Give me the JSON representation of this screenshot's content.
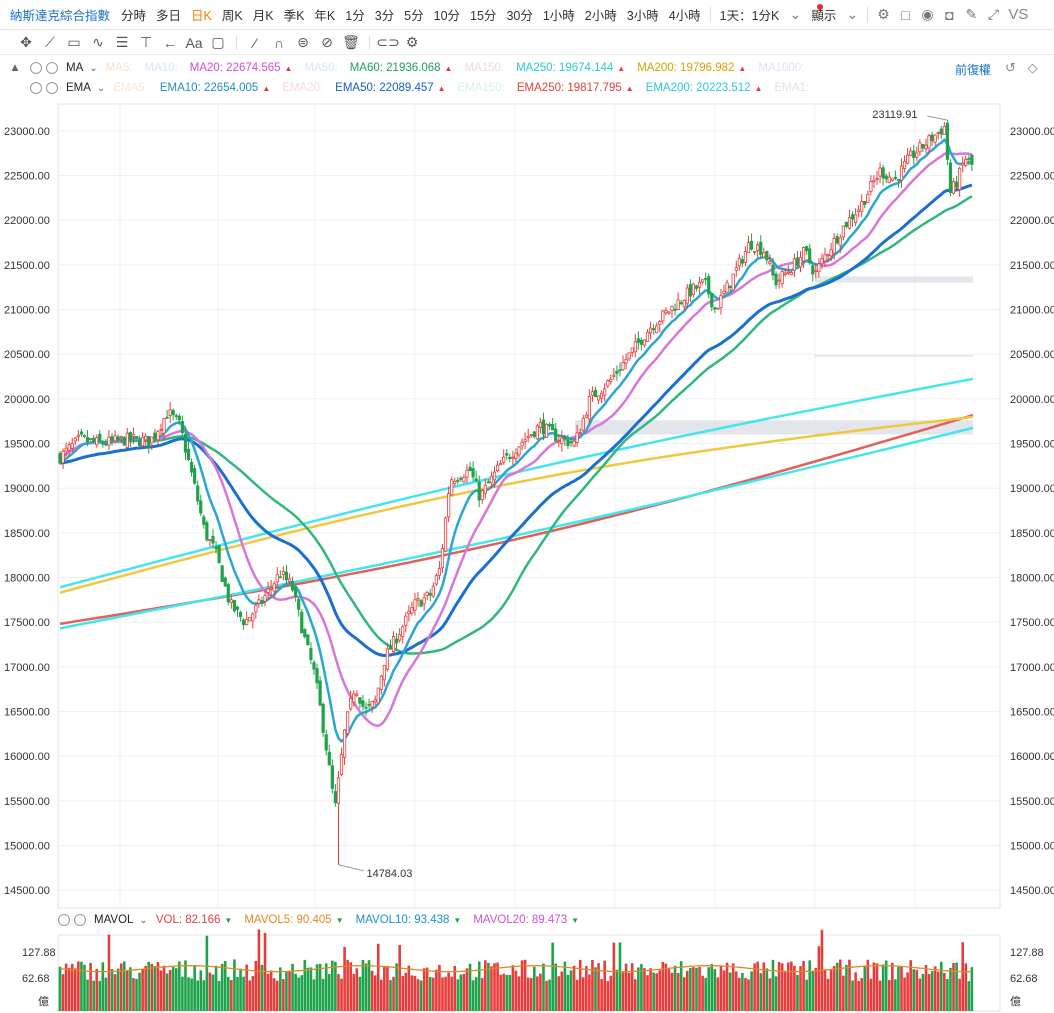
{
  "toolbar": {
    "title": "納斯達克綜合指數",
    "timeframes": [
      "分時",
      "多日",
      "日K",
      "周K",
      "月K",
      "季K",
      "年K",
      "1分",
      "3分",
      "5分",
      "10分",
      "15分",
      "30分",
      "1小時",
      "2小時",
      "3小時",
      "4小時"
    ],
    "active": "日K",
    "range_label": "1天：1分K",
    "display_label": "顯示",
    "vs_label": "VS"
  },
  "ma_legend": {
    "name": "MA",
    "items": [
      {
        "label": "MA5:",
        "value": "",
        "color": "#f3b58a"
      },
      {
        "label": "MA10:",
        "value": "",
        "color": "#9fc8ee"
      },
      {
        "label": "MA20:",
        "value": "22674.565",
        "color": "#d44bd4"
      },
      {
        "label": "MA50:",
        "value": "",
        "color": "#a8c8e6"
      },
      {
        "label": "MA60:",
        "value": "21936.068",
        "color": "#1e9e5a"
      },
      {
        "label": "MA150:",
        "value": "",
        "color": "#f0a0b0"
      },
      {
        "label": "MA250:",
        "value": "19674.144",
        "color": "#2bc6d6"
      },
      {
        "label": "MA200:",
        "value": "19796.982",
        "color": "#d6a200"
      },
      {
        "label": "MA1000:",
        "value": "",
        "color": "#c6b8e6"
      }
    ],
    "right": "前復權"
  },
  "ema_legend": {
    "name": "EMA",
    "items": [
      {
        "label": "EMA5:",
        "value": "",
        "color": "#f3c9a0"
      },
      {
        "label": "EMA10:",
        "value": "22654.005",
        "color": "#1f8fbf"
      },
      {
        "label": "EMA20:",
        "value": "",
        "color": "#f0a8c8"
      },
      {
        "label": "EMA50:",
        "value": "22089.457",
        "color": "#1a5fbf"
      },
      {
        "label": "EMA150:",
        "value": "",
        "color": "#a0e0e0"
      },
      {
        "label": "EMA250:",
        "value": "19817.795",
        "color": "#e0403c"
      },
      {
        "label": "EMA200:",
        "value": "20223.512",
        "color": "#2bc6d6"
      },
      {
        "label": "EMA1:",
        "value": "",
        "color": "#c0c0c0"
      }
    ]
  },
  "vol_legend": {
    "name": "MAVOL",
    "items": [
      {
        "label": "VOL:",
        "value": "82.166",
        "color": "#e04040"
      },
      {
        "label": "MAVOL5:",
        "value": "90.405",
        "color": "#e08a20"
      },
      {
        "label": "MAVOL10:",
        "value": "93.438",
        "color": "#1a8fd0"
      },
      {
        "label": "MAVOL20:",
        "value": "89.473",
        "color": "#d050d0"
      }
    ]
  },
  "chart_data": {
    "type": "candlestick",
    "y_ticks": [
      "23000.00",
      "22500.00",
      "22000.00",
      "21500.00",
      "21000.00",
      "20500.00",
      "20000.00",
      "19500.00",
      "19000.00",
      "18500.00",
      "18000.00",
      "17500.00",
      "17000.00",
      "16500.00",
      "16000.00",
      "15500.00",
      "15000.00",
      "14500.00"
    ],
    "ylim": [
      14300,
      23300
    ],
    "annotations": {
      "high": "23119.91",
      "low": "14784.03"
    },
    "vol_ticks": [
      "127.88",
      "62.68"
    ],
    "vol_unit": "億",
    "colors": {
      "up": "#e83c3c",
      "down": "#1fa34a"
    }
  }
}
